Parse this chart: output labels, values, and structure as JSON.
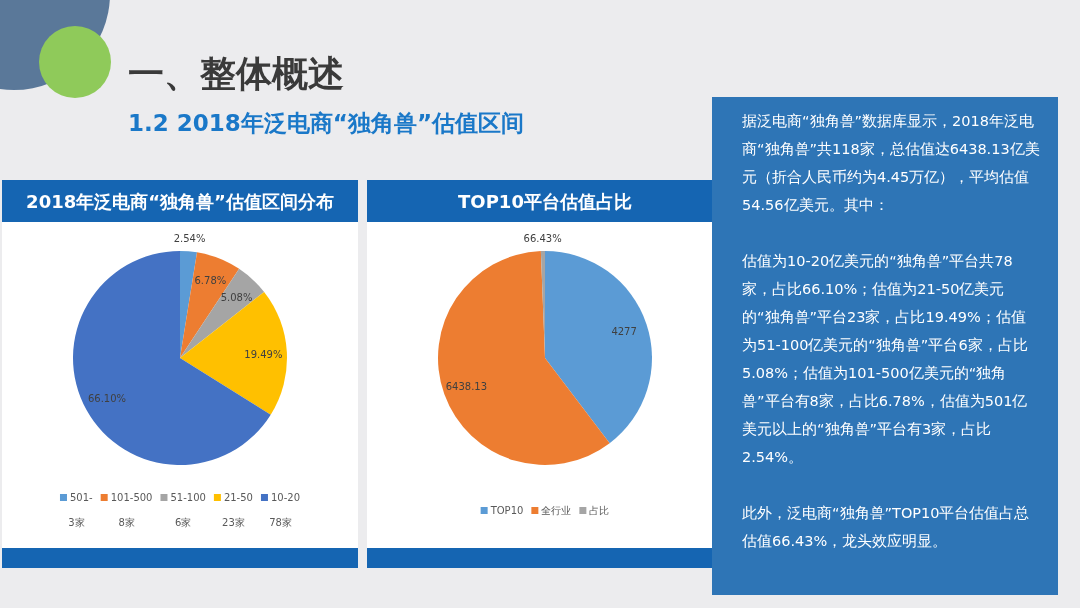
{
  "chart_data": [
    {
      "type": "other",
      "title": "一、整体概述",
      "subtitle": "1.2 2018年泛电商“独角兽”估值区间"
    },
    {
      "type": "pie",
      "title": "2018年泛电商“独角兽”估值区间分布",
      "categories": [
        "501-",
        "101-500",
        "51-100",
        "21-50",
        "10-20"
      ],
      "values": [
        2.54,
        6.78,
        5.08,
        19.49,
        66.1
      ],
      "colors": [
        "#5b9bd5",
        "#ed7d31",
        "#a5a5a5",
        "#ffc000",
        "#4472c4"
      ],
      "value_labels": [
        "2.54%",
        "6.78%",
        "5.08%",
        "19.49%",
        "66.10%"
      ],
      "legend": "bottom",
      "annotations": [
        "3家",
        "8家",
        "6家",
        "23家",
        "78家"
      ]
    },
    {
      "type": "pie",
      "title": "TOP10平台估值占比",
      "categories": [
        "TOP10",
        "全行业",
        "占比"
      ],
      "values": [
        4277,
        6438.13,
        66.43
      ],
      "colors": [
        "#5b9bd5",
        "#ed7d31",
        "#a5a5a5"
      ],
      "value_labels": [
        "4277",
        "6438.13",
        "66.43%"
      ],
      "legend": "bottom"
    },
    {
      "type": "other",
      "annotations": [
        "据泛电商“独角兽”数据库显示，2018年泛电商“独角兽”共118家，总估值达6438.13亿美元（折合人民币约为4.45万亿），平均估值54.56亿美元。其中：",
        "估值为10-20亿美元的“独角兽”平台共78家，占比66.10%；估值为21-50亿美元的“独角兽”平台23家，占比19.49%；估值为51-100亿美元的“独角兽”平台6家，占比5.08%；估值为101-500亿美元的“独角兽”平台有8家，占比6.78%，估值为501亿美元以上的“独角兽”平台有3家，占比2.54%。",
        "此外，泛电商“独角兽”TOP10平台估值占总估值66.43%，龙头效应明显。"
      ]
    }
  ]
}
